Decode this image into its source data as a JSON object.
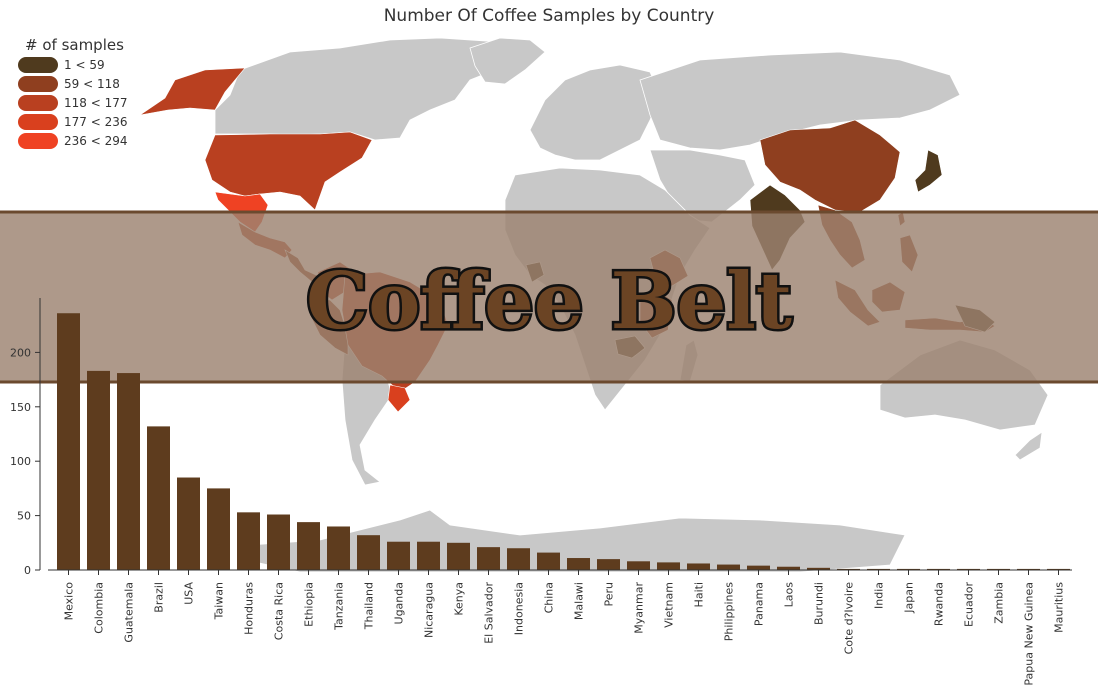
{
  "colors": {
    "land": "#c8c8c8",
    "belt_band": "#9c8370",
    "belt_edge": "#6b4a2f",
    "bar": "#5e3c1e",
    "belt_text": "#6b4424",
    "belt_stroke": "#111111"
  },
  "map": {
    "title": "Number Of Coffee Samples by Country",
    "belt_label": "Coffee Belt",
    "legend": {
      "title": "# of samples",
      "placement": "top-left",
      "bins": [
        {
          "label": "1 < 59",
          "color": "#4f3a1e"
        },
        {
          "label": "59 < 118",
          "color": "#8f3f1f"
        },
        {
          "label": "118 < 177",
          "color": "#b94020"
        },
        {
          "label": "177 < 236",
          "color": "#d9401e"
        },
        {
          "label": "236 < 294",
          "color": "#ef4223"
        }
      ]
    }
  },
  "chart_data": {
    "type": "bar",
    "title": "",
    "xlabel": "",
    "ylabel": "",
    "ylim": [
      0,
      250
    ],
    "yticks": [
      0,
      50,
      100,
      150,
      200
    ],
    "grid": false,
    "categories": [
      "Mexico",
      "Colombia",
      "Guatemala",
      "Brazil",
      "USA",
      "Taiwan",
      "Honduras",
      "Costa Rica",
      "Ethiopia",
      "Tanzania",
      "Thailand",
      "Uganda",
      "Nicaragua",
      "Kenya",
      "El Salvador",
      "Indonesia",
      "China",
      "Malawi",
      "Peru",
      "Myanmar",
      "Vietnam",
      "Haiti",
      "Philippines",
      "Panama",
      "Laos",
      "Burundi",
      "Cote d?Ivoire",
      "India",
      "Japan",
      "Rwanda",
      "Ecuador",
      "Zambia",
      "Papua New Guinea",
      "Mauritius"
    ],
    "values": [
      236,
      183,
      181,
      132,
      85,
      75,
      53,
      51,
      44,
      40,
      32,
      26,
      26,
      25,
      21,
      20,
      16,
      11,
      10,
      8,
      7,
      6,
      5,
      4,
      3,
      2,
      1,
      1,
      1,
      1,
      1,
      1,
      1,
      1
    ]
  }
}
